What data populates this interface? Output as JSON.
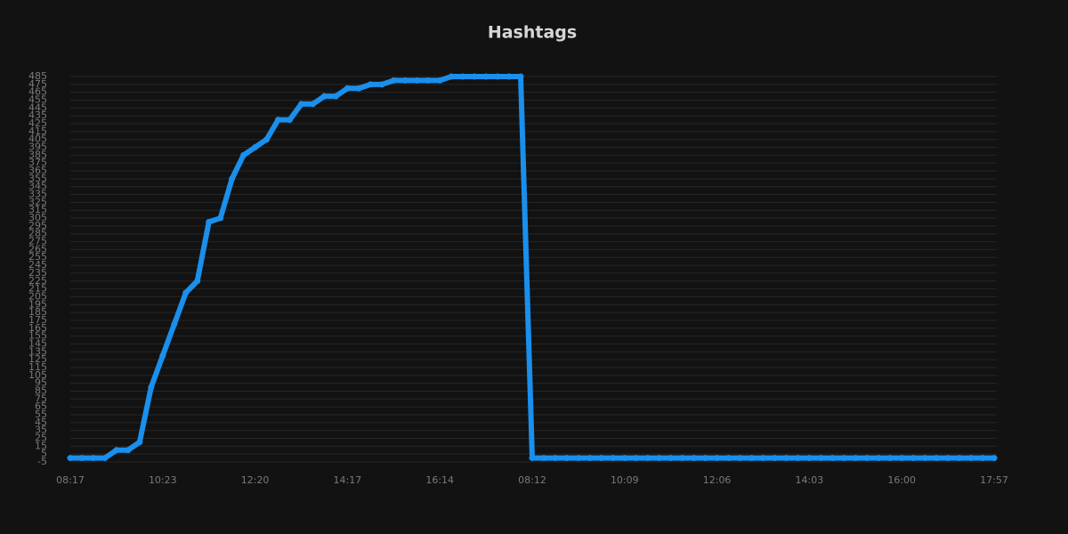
{
  "chart_data": {
    "type": "line",
    "title": "Hashtags",
    "categories": [
      "08:17",
      null,
      null,
      null,
      null,
      null,
      null,
      null,
      "10:23",
      null,
      null,
      null,
      null,
      null,
      null,
      null,
      "12:20",
      null,
      null,
      null,
      null,
      null,
      null,
      null,
      "14:17",
      null,
      null,
      null,
      null,
      null,
      null,
      null,
      "16:14",
      null,
      null,
      null,
      null,
      null,
      null,
      null,
      "08:12",
      null,
      null,
      null,
      null,
      null,
      null,
      null,
      "10:09",
      null,
      null,
      null,
      null,
      null,
      null,
      null,
      "12:06",
      null,
      null,
      null,
      null,
      null,
      null,
      null,
      "14:03",
      null,
      null,
      null,
      null,
      null,
      null,
      null,
      "16:00",
      null,
      null,
      null,
      null,
      null,
      null,
      null,
      "17:57"
    ],
    "values": [
      0,
      0,
      0,
      0,
      10,
      10,
      20,
      90,
      130,
      170,
      210,
      225,
      300,
      305,
      355,
      385,
      395,
      405,
      430,
      430,
      450,
      450,
      460,
      460,
      470,
      470,
      475,
      475,
      480,
      480,
      480,
      480,
      480,
      485,
      485,
      485,
      485,
      485,
      485,
      485,
      0,
      0,
      0,
      0,
      0,
      0,
      0,
      0,
      0,
      0,
      0,
      0,
      0,
      0,
      0,
      0,
      0,
      0,
      0,
      0,
      0,
      0,
      0,
      0,
      0,
      0,
      0,
      0,
      0,
      0,
      0,
      0,
      0,
      0,
      0,
      0,
      0,
      0,
      0,
      0,
      0
    ],
    "color": "#1a8fec",
    "ylim": [
      -5,
      485
    ],
    "yticks": [
      -5,
      5,
      15,
      25,
      35,
      45,
      55,
      65,
      75,
      85,
      95,
      105,
      115,
      125,
      135,
      145,
      155,
      165,
      175,
      185,
      195,
      205,
      215,
      225,
      235,
      245,
      255,
      265,
      275,
      285,
      295,
      305,
      315,
      325,
      335,
      345,
      355,
      365,
      375,
      385,
      395,
      405,
      415,
      425,
      435,
      445,
      455,
      465,
      475,
      485
    ],
    "grid": true
  }
}
